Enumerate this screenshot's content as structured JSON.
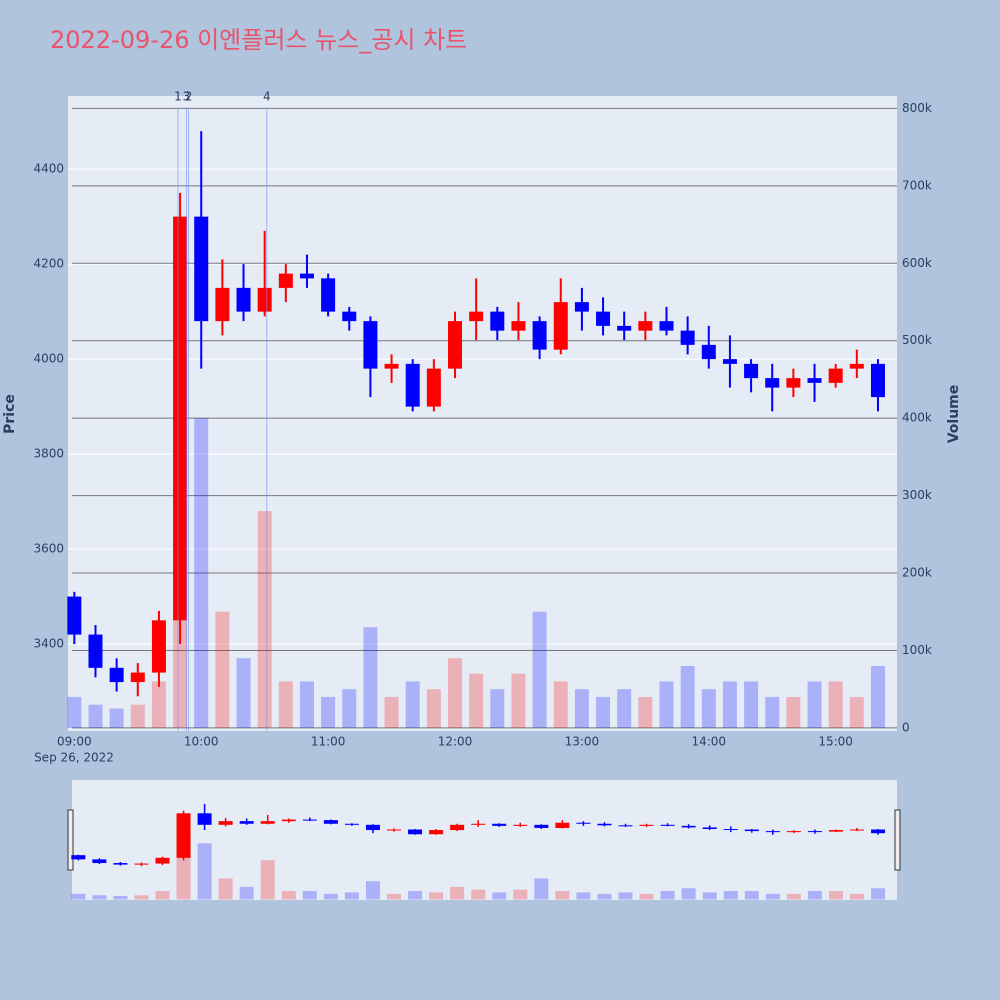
{
  "chart_data": {
    "type": "candlestick",
    "title": "2022-09-26 이엔플러스 뉴스_공시 차트",
    "y_label": "Price",
    "y2_label": "Volume",
    "x_date_label": "Sep 26, 2022",
    "increasing_color": "#ff0000",
    "decreasing_color": "#0000ff",
    "x": [
      "2022-09-26 09:00",
      "2022-09-26 09:10",
      "2022-09-26 09:20",
      "2022-09-26 09:30",
      "2022-09-26 09:40",
      "2022-09-26 09:50",
      "2022-09-26 10:00",
      "2022-09-26 10:10",
      "2022-09-26 10:20",
      "2022-09-26 10:30",
      "2022-09-26 10:40",
      "2022-09-26 10:50",
      "2022-09-26 11:00",
      "2022-09-26 11:10",
      "2022-09-26 11:20",
      "2022-09-26 11:30",
      "2022-09-26 11:40",
      "2022-09-26 11:50",
      "2022-09-26 12:00",
      "2022-09-26 12:10",
      "2022-09-26 12:20",
      "2022-09-26 12:30",
      "2022-09-26 12:40",
      "2022-09-26 12:50",
      "2022-09-26 13:00",
      "2022-09-26 13:10",
      "2022-09-26 13:20",
      "2022-09-26 13:30",
      "2022-09-26 13:40",
      "2022-09-26 13:50",
      "2022-09-26 14:00",
      "2022-09-26 14:10",
      "2022-09-26 14:20",
      "2022-09-26 14:30",
      "2022-09-26 14:40",
      "2022-09-26 14:50",
      "2022-09-26 15:00",
      "2022-09-26 15:10",
      "2022-09-26 15:20"
    ],
    "open": [
      3500,
      3420,
      3350,
      3320,
      3340,
      3450,
      4300,
      4080,
      4150,
      4100,
      4150,
      4180,
      4170,
      4100,
      4080,
      3980,
      3990,
      3900,
      3980,
      4080,
      4100,
      4060,
      4080,
      4020,
      4120,
      4100,
      4070,
      4060,
      4080,
      4060,
      4030,
      4000,
      3990,
      3960,
      3940,
      3960,
      3950,
      3980,
      3990
    ],
    "high": [
      3510,
      3440,
      3370,
      3360,
      3470,
      4350,
      4480,
      4210,
      4200,
      4270,
      4200,
      4220,
      4180,
      4110,
      4090,
      4010,
      4000,
      4000,
      4100,
      4170,
      4110,
      4120,
      4090,
      4170,
      4150,
      4130,
      4100,
      4100,
      4110,
      4090,
      4070,
      4050,
      4000,
      3990,
      3980,
      3990,
      3990,
      4020,
      4000
    ],
    "low": [
      3400,
      3330,
      3300,
      3290,
      3310,
      3400,
      3980,
      4050,
      4080,
      4090,
      4120,
      4150,
      4090,
      4060,
      3920,
      3950,
      3890,
      3890,
      3960,
      4040,
      4040,
      4040,
      4000,
      4010,
      4060,
      4050,
      4040,
      4040,
      4050,
      4010,
      3980,
      3940,
      3930,
      3890,
      3920,
      3910,
      3940,
      3960,
      3890
    ],
    "close": [
      3420,
      3350,
      3320,
      3340,
      3450,
      4300,
      4080,
      4150,
      4100,
      4150,
      4180,
      4170,
      4100,
      4080,
      3980,
      3990,
      3900,
      3980,
      4080,
      4100,
      4060,
      4080,
      4020,
      4120,
      4100,
      4070,
      4060,
      4080,
      4060,
      4030,
      4000,
      3990,
      3960,
      3940,
      3960,
      3950,
      3980,
      3990,
      3920
    ],
    "volume": [
      40000,
      30000,
      25000,
      30000,
      60000,
      480000,
      400000,
      150000,
      90000,
      280000,
      60000,
      60000,
      40000,
      50000,
      130000,
      40000,
      60000,
      50000,
      90000,
      70000,
      50000,
      70000,
      150000,
      60000,
      50000,
      40000,
      50000,
      40000,
      60000,
      80000,
      50000,
      60000,
      60000,
      40000,
      40000,
      60000,
      60000,
      40000,
      80000
    ],
    "xlim": [
      "2022-09-26 08:57",
      "2022-09-26 15:29"
    ],
    "xticks": [
      {
        "value": "2022-09-26 09:00",
        "label": "09:00"
      },
      {
        "value": "2022-09-26 10:00",
        "label": "10:00"
      },
      {
        "value": "2022-09-26 11:00",
        "label": "11:00"
      },
      {
        "value": "2022-09-26 12:00",
        "label": "12:00"
      },
      {
        "value": "2022-09-26 13:00",
        "label": "13:00"
      },
      {
        "value": "2022-09-26 14:00",
        "label": "14:00"
      },
      {
        "value": "2022-09-26 15:00",
        "label": "15:00"
      }
    ],
    "ylim": [
      3217,
      4554
    ],
    "yticks": [
      3400,
      3600,
      3800,
      4000,
      4200,
      4400
    ],
    "y2lim": [
      -4000,
      816000
    ],
    "y2ticks": [
      0,
      {
        "value": 100000,
        "label": "100k"
      },
      {
        "value": 200000,
        "label": "200k"
      },
      {
        "value": 300000,
        "label": "300k"
      },
      {
        "value": 400000,
        "label": "400k"
      },
      {
        "value": 500000,
        "label": "500k"
      },
      {
        "value": 600000,
        "label": "600k"
      },
      {
        "value": 700000,
        "label": "700k"
      },
      {
        "value": 800000,
        "label": "800k"
      }
    ],
    "annotations": [
      {
        "x": "2022-09-26 09:49",
        "label": "1"
      },
      {
        "x": "2022-09-26 09:54",
        "label": "2"
      },
      {
        "x": "2022-09-26 09:53",
        "label": "3"
      },
      {
        "x": "2022-09-26 10:31",
        "label": "4"
      }
    ]
  }
}
